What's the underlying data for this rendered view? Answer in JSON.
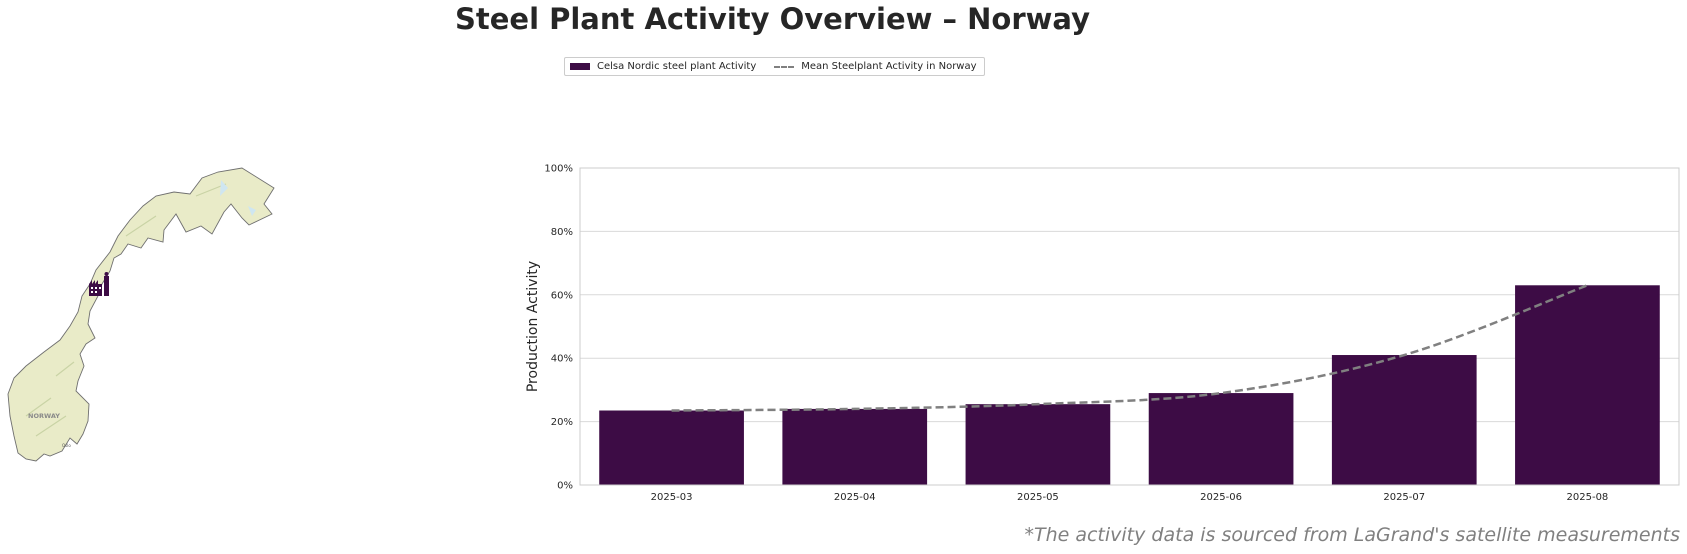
{
  "title": "Steel Plant Activity Overview – Norway",
  "legend": {
    "bar_label": "Celsa Nordic steel plant Activity",
    "line_label": "Mean Steelplant Activity in Norway"
  },
  "map": {
    "country_label": "NORWAY",
    "city_label": "Oslo",
    "plant_icon": "factory-icon"
  },
  "footnote": "*The activity data is sourced from LaGrand's satellite measurements",
  "colors": {
    "bar": "#3d0c45",
    "line": "#808080",
    "grid": "#d9d9d9"
  },
  "chart_data": {
    "type": "bar",
    "categories": [
      "2025-03",
      "2025-04",
      "2025-05",
      "2025-06",
      "2025-07",
      "2025-08"
    ],
    "series": [
      {
        "name": "Celsa Nordic steel plant Activity",
        "type": "bar",
        "values": [
          23.5,
          24,
          25.5,
          29,
          41,
          63
        ]
      },
      {
        "name": "Mean Steelplant Activity in Norway",
        "type": "line",
        "values": [
          23.5,
          24,
          25.5,
          29,
          41,
          63
        ]
      }
    ],
    "ylabel": "Production Activity",
    "yticks": [
      "0%",
      "20%",
      "40%",
      "60%",
      "80%",
      "100%"
    ],
    "ylim": [
      0,
      100
    ],
    "grid": true,
    "legend_position": "top-center"
  }
}
